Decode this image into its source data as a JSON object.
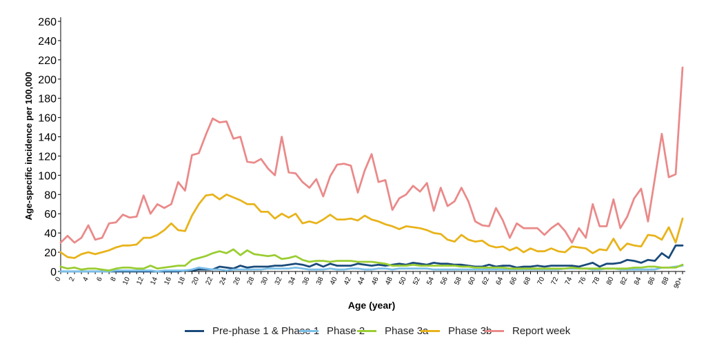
{
  "chart_data": {
    "type": "line",
    "xlabel": "Age (year)",
    "ylabel": "Age-specific incidence per 100,000",
    "ylim": [
      0,
      260
    ],
    "yticks": [
      0,
      20,
      40,
      60,
      80,
      100,
      120,
      140,
      160,
      180,
      200,
      220,
      240,
      260
    ],
    "x_tick_labels": [
      "0",
      "2",
      "4",
      "6",
      "8",
      "10",
      "12",
      "14",
      "16",
      "18",
      "20",
      "22",
      "24",
      "26",
      "28",
      "30",
      "32",
      "34",
      "36",
      "38",
      "40",
      "42",
      "44",
      "46",
      "48",
      "50",
      "52",
      "54",
      "56",
      "58",
      "60",
      "62",
      "64",
      "66",
      "68",
      "70",
      "72",
      "74",
      "76",
      "78",
      "80",
      "82",
      "84",
      "86",
      "88",
      "90+"
    ],
    "x": [
      0,
      1,
      2,
      3,
      4,
      5,
      6,
      7,
      8,
      9,
      10,
      11,
      12,
      13,
      14,
      15,
      16,
      17,
      18,
      19,
      20,
      21,
      22,
      23,
      24,
      25,
      26,
      27,
      28,
      29,
      30,
      31,
      32,
      33,
      34,
      35,
      36,
      37,
      38,
      39,
      40,
      41,
      42,
      43,
      44,
      45,
      46,
      47,
      48,
      49,
      50,
      51,
      52,
      53,
      54,
      55,
      56,
      57,
      58,
      59,
      60,
      61,
      62,
      63,
      64,
      65,
      66,
      67,
      68,
      69,
      70,
      71,
      72,
      73,
      74,
      75,
      76,
      77,
      78,
      79,
      80,
      81,
      82,
      83,
      84,
      85,
      86,
      87,
      88,
      89,
      90
    ],
    "legend_position": "bottom",
    "series": [
      {
        "name": "Pre-phase 1 & Phase 1",
        "color": "#1a4a7a",
        "values": [
          0,
          0,
          0,
          0,
          0,
          0,
          0,
          0,
          0,
          0,
          0,
          0,
          0,
          0,
          0,
          0,
          0,
          0,
          1,
          1,
          2,
          2,
          2,
          5,
          4,
          3,
          6,
          4,
          5,
          5,
          5,
          6,
          6,
          7,
          8,
          7,
          5,
          8,
          5,
          8,
          6,
          6,
          6,
          8,
          7,
          6,
          7,
          6,
          7,
          8,
          7,
          9,
          8,
          7,
          9,
          8,
          8,
          7,
          7,
          6,
          5,
          5,
          7,
          5,
          6,
          6,
          4,
          5,
          5,
          6,
          5,
          6,
          6,
          6,
          6,
          5,
          7,
          9,
          5,
          8,
          8,
          9,
          12,
          11,
          9,
          12,
          11,
          19,
          14,
          27,
          27
        ]
      },
      {
        "name": "Phase 2",
        "color": "#7cbfe8",
        "values": [
          0,
          0,
          0,
          0,
          0,
          0,
          0,
          0,
          1,
          1,
          1,
          1,
          1,
          1,
          0,
          1,
          1,
          1,
          1,
          2,
          4,
          3,
          2,
          2,
          1,
          2,
          2,
          2,
          2,
          2,
          3,
          3,
          3,
          3,
          4,
          3,
          2,
          2,
          2,
          3,
          2,
          2,
          3,
          3,
          2,
          2,
          3,
          3,
          2,
          3,
          3,
          3,
          3,
          3,
          2,
          2,
          2,
          2,
          2,
          2,
          2,
          2,
          2,
          2,
          2,
          2,
          2,
          2,
          2,
          2,
          2,
          2,
          2,
          3,
          3,
          3,
          3,
          2,
          2,
          3,
          3,
          2,
          2,
          2,
          2,
          2,
          2,
          4,
          4,
          5,
          6
        ]
      },
      {
        "name": "Phase 3a",
        "color": "#9acd32",
        "values": [
          5,
          3,
          4,
          2,
          3,
          3,
          2,
          1,
          3,
          4,
          4,
          3,
          3,
          6,
          3,
          4,
          5,
          6,
          6,
          12,
          14,
          16,
          19,
          21,
          19,
          23,
          17,
          22,
          18,
          17,
          16,
          17,
          13,
          14,
          16,
          12,
          10,
          11,
          11,
          10,
          11,
          11,
          11,
          10,
          10,
          10,
          9,
          8,
          6,
          6,
          6,
          7,
          6,
          6,
          6,
          6,
          6,
          6,
          5,
          5,
          4,
          4,
          4,
          4,
          4,
          3,
          3,
          3,
          3,
          3,
          3,
          3,
          3,
          3,
          4,
          3,
          3,
          3,
          3,
          3,
          3,
          3,
          3,
          4,
          4,
          5,
          5,
          4,
          4,
          4,
          7
        ]
      },
      {
        "name": "Phase 3b",
        "color": "#e8b31a",
        "values": [
          20,
          15,
          14,
          18,
          20,
          18,
          20,
          22,
          25,
          27,
          27,
          28,
          35,
          35,
          38,
          43,
          50,
          43,
          42,
          58,
          70,
          79,
          80,
          75,
          80,
          77,
          74,
          70,
          70,
          62,
          62,
          55,
          60,
          56,
          60,
          50,
          52,
          50,
          54,
          59,
          54,
          54,
          55,
          53,
          58,
          54,
          52,
          49,
          47,
          44,
          47,
          46,
          45,
          43,
          40,
          39,
          33,
          31,
          38,
          33,
          31,
          32,
          27,
          25,
          26,
          22,
          25,
          20,
          24,
          21,
          21,
          24,
          21,
          20,
          26,
          25,
          24,
          19,
          23,
          22,
          34,
          22,
          29,
          27,
          26,
          38,
          37,
          33,
          46,
          30,
          55
        ]
      },
      {
        "name": "Report week",
        "color": "#ea8a8a",
        "values": [
          30,
          37,
          30,
          35,
          48,
          33,
          35,
          50,
          51,
          59,
          56,
          57,
          79,
          60,
          70,
          66,
          70,
          93,
          84,
          121,
          123,
          142,
          159,
          155,
          156,
          138,
          140,
          114,
          113,
          117,
          107,
          100,
          140,
          103,
          102,
          93,
          87,
          96,
          78,
          99,
          111,
          112,
          110,
          82,
          105,
          122,
          93,
          95,
          64,
          76,
          80,
          89,
          83,
          92,
          63,
          87,
          68,
          73,
          87,
          73,
          52,
          48,
          47,
          66,
          53,
          35,
          50,
          45,
          45,
          45,
          38,
          45,
          50,
          42,
          30,
          45,
          35,
          70,
          47,
          47,
          75,
          45,
          57,
          76,
          86,
          52,
          97,
          143,
          98,
          101,
          212
        ]
      }
    ]
  }
}
